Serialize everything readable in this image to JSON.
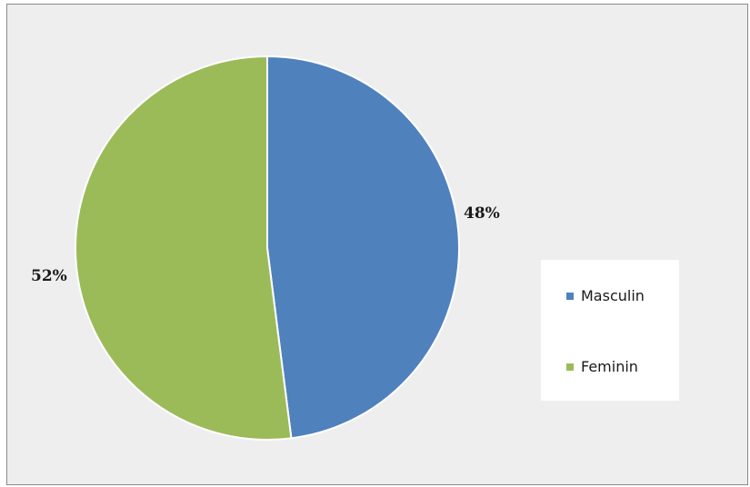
{
  "chart_data": {
    "type": "pie",
    "slices": [
      {
        "label": "Masculin",
        "value": 48,
        "display": "48%",
        "color": "#4F81BD"
      },
      {
        "label": "Feminin",
        "value": 52,
        "display": "52%",
        "color": "#9BBB59"
      }
    ],
    "legend": {
      "position": "right",
      "entries": [
        "Masculin",
        "Feminin"
      ]
    },
    "start_angle": "12 o'clock",
    "direction": "clockwise",
    "background_color": "#EEEEEE",
    "slice_border_color": "#FFFFFF"
  }
}
